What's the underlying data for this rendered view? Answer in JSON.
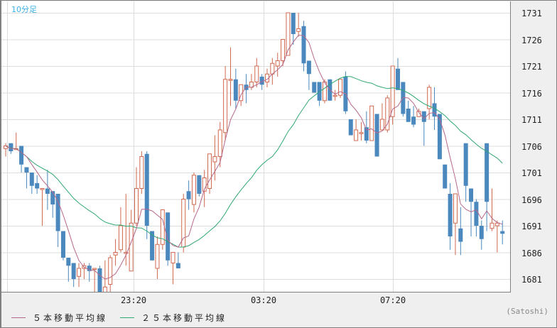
{
  "header": {
    "period_label": "10分足"
  },
  "legend": [
    {
      "label": "５本移動平均線",
      "color": "#b5678a"
    },
    {
      "label": "２５本移動平均線",
      "color": "#2fa872"
    }
  ],
  "credit": "(Satoshi)",
  "colors": {
    "up": "#d0694f",
    "down": "#4a88bd",
    "grid": "#dddddd",
    "ma5": "#b5678a",
    "ma25": "#2fa872"
  },
  "chart_data": {
    "type": "candlestick",
    "title": "10分足",
    "xlabel": "",
    "ylabel": "",
    "ylim": [
      1678,
      1733
    ],
    "y_ticks": [
      1731,
      1726,
      1721,
      1716,
      1711,
      1706,
      1701,
      1696,
      1691,
      1686,
      1681
    ],
    "x_ticks": [
      {
        "label": "23:20",
        "index": 24
      },
      {
        "label": "03:20",
        "index": 50
      },
      {
        "label": "07:20",
        "index": 75
      }
    ],
    "grid": true,
    "legend_position": "bottom-left",
    "candles": [
      {
        "o": 1705.5,
        "h": 1706.5,
        "l": 1704.0,
        "c": 1706.0
      },
      {
        "o": 1706.5,
        "h": 1706.5,
        "l": 1704.5,
        "c": 1705.0
      },
      {
        "o": 1705.5,
        "h": 1708.5,
        "l": 1705.5,
        "c": 1705.5
      },
      {
        "o": 1706.0,
        "h": 1706.0,
        "l": 1701.0,
        "c": 1702.5
      },
      {
        "o": 1702.0,
        "h": 1702.0,
        "l": 1698.0,
        "c": 1701.0
      },
      {
        "o": 1701.0,
        "h": 1700.5,
        "l": 1697.0,
        "c": 1698.5
      },
      {
        "o": 1699.0,
        "h": 1700.5,
        "l": 1697.0,
        "c": 1698.0
      },
      {
        "o": 1698.0,
        "h": 1698.0,
        "l": 1691.0,
        "c": 1698.0
      },
      {
        "o": 1698.0,
        "h": 1701.5,
        "l": 1694.0,
        "c": 1697.0
      },
      {
        "o": 1697.5,
        "h": 1697.5,
        "l": 1692.5,
        "c": 1695.0
      },
      {
        "o": 1697.0,
        "h": 1697.0,
        "l": 1687.0,
        "c": 1690.0
      },
      {
        "o": 1690.0,
        "h": 1690.0,
        "l": 1684.5,
        "c": 1685.0
      },
      {
        "o": 1685.0,
        "h": 1684.0,
        "l": 1680.5,
        "c": 1683.5
      },
      {
        "o": 1684.0,
        "h": 1683.5,
        "l": 1679.5,
        "c": 1681.0
      },
      {
        "o": 1681.5,
        "h": 1684.0,
        "l": 1679.5,
        "c": 1683.0
      },
      {
        "o": 1683.0,
        "h": 1684.0,
        "l": 1681.0,
        "c": 1683.5
      },
      {
        "o": 1683.5,
        "h": 1684.0,
        "l": 1680.5,
        "c": 1682.5
      },
      {
        "o": 1683.0,
        "h": 1683.0,
        "l": 1678.5,
        "c": 1683.0
      },
      {
        "o": 1683.0,
        "h": 1683.5,
        "l": 1675.0,
        "c": 1676.5
      },
      {
        "o": 1676.0,
        "h": 1684.5,
        "l": 1673.0,
        "c": 1679.5
      },
      {
        "o": 1680.0,
        "h": 1685.5,
        "l": 1675.5,
        "c": 1685.0
      },
      {
        "o": 1685.5,
        "h": 1688.5,
        "l": 1683.5,
        "c": 1686.0
      },
      {
        "o": 1686.5,
        "h": 1694.5,
        "l": 1686.0,
        "c": 1691.0
      },
      {
        "o": 1686.0,
        "h": 1697.0,
        "l": 1683.5,
        "c": 1686.0
      },
      {
        "o": 1682.5,
        "h": 1694.0,
        "l": 1682.5,
        "c": 1691.5
      },
      {
        "o": 1691.5,
        "h": 1702.0,
        "l": 1691.0,
        "c": 1698.0
      },
      {
        "o": 1698.0,
        "h": 1705.0,
        "l": 1697.0,
        "c": 1704.0
      },
      {
        "o": 1704.5,
        "h": 1705.0,
        "l": 1688.5,
        "c": 1691.0
      },
      {
        "o": 1690.0,
        "h": 1690.0,
        "l": 1685.0,
        "c": 1684.5
      },
      {
        "o": 1683.0,
        "h": 1689.0,
        "l": 1681.0,
        "c": 1687.5
      },
      {
        "o": 1687.5,
        "h": 1691.5,
        "l": 1686.5,
        "c": 1694.0
      },
      {
        "o": 1693.5,
        "h": 1693.5,
        "l": 1683.5,
        "c": 1684.5
      },
      {
        "o": 1684.0,
        "h": 1686.0,
        "l": 1680.0,
        "c": 1686.0
      },
      {
        "o": 1684.0,
        "h": 1686.0,
        "l": 1683.5,
        "c": 1683.0
      },
      {
        "o": 1687.0,
        "h": 1697.0,
        "l": 1686.0,
        "c": 1696.0
      },
      {
        "o": 1697.5,
        "h": 1699.5,
        "l": 1694.0,
        "c": 1696.0
      },
      {
        "o": 1695.0,
        "h": 1701.0,
        "l": 1693.5,
        "c": 1700.5
      },
      {
        "o": 1700.5,
        "h": 1700.5,
        "l": 1696.5,
        "c": 1697.0
      },
      {
        "o": 1697.5,
        "h": 1701.5,
        "l": 1694.5,
        "c": 1700.0
      },
      {
        "o": 1698.0,
        "h": 1704.5,
        "l": 1697.0,
        "c": 1704.5
      },
      {
        "o": 1703.0,
        "h": 1708.0,
        "l": 1699.5,
        "c": 1704.0
      },
      {
        "o": 1704.0,
        "h": 1710.5,
        "l": 1702.0,
        "c": 1709.0
      },
      {
        "o": 1708.5,
        "h": 1721.0,
        "l": 1707.0,
        "c": 1718.5
      },
      {
        "o": 1718.5,
        "h": 1724.5,
        "l": 1713.5,
        "c": 1718.5
      },
      {
        "o": 1718.5,
        "h": 1720.5,
        "l": 1713.0,
        "c": 1714.5
      },
      {
        "o": 1714.5,
        "h": 1717.5,
        "l": 1713.5,
        "c": 1717.5
      },
      {
        "o": 1717.5,
        "h": 1719.5,
        "l": 1714.0,
        "c": 1716.5
      },
      {
        "o": 1717.0,
        "h": 1719.5,
        "l": 1716.5,
        "c": 1718.0
      },
      {
        "o": 1718.0,
        "h": 1722.5,
        "l": 1717.0,
        "c": 1721.0
      },
      {
        "o": 1719.0,
        "h": 1719.5,
        "l": 1716.5,
        "c": 1717.5
      },
      {
        "o": 1718.0,
        "h": 1720.5,
        "l": 1717.0,
        "c": 1719.5
      },
      {
        "o": 1719.5,
        "h": 1722.5,
        "l": 1717.5,
        "c": 1721.5
      },
      {
        "o": 1721.0,
        "h": 1723.5,
        "l": 1719.0,
        "c": 1722.0
      },
      {
        "o": 1722.0,
        "h": 1725.5,
        "l": 1721.0,
        "c": 1726.0
      },
      {
        "o": 1723.0,
        "h": 1731.0,
        "l": 1723.0,
        "c": 1731.0
      },
      {
        "o": 1731.0,
        "h": 1731.0,
        "l": 1725.0,
        "c": 1727.0
      },
      {
        "o": 1727.5,
        "h": 1731.0,
        "l": 1726.5,
        "c": 1728.0
      },
      {
        "o": 1728.5,
        "h": 1729.5,
        "l": 1720.0,
        "c": 1721.5
      },
      {
        "o": 1722.0,
        "h": 1722.0,
        "l": 1716.5,
        "c": 1719.5
      },
      {
        "o": 1718.0,
        "h": 1718.0,
        "l": 1716.0,
        "c": 1716.0
      },
      {
        "o": 1718.0,
        "h": 1718.0,
        "l": 1713.5,
        "c": 1714.5
      },
      {
        "o": 1714.5,
        "h": 1718.5,
        "l": 1714.0,
        "c": 1718.0
      },
      {
        "o": 1718.5,
        "h": 1718.5,
        "l": 1714.5,
        "c": 1714.5
      },
      {
        "o": 1715.5,
        "h": 1716.5,
        "l": 1714.5,
        "c": 1715.5
      },
      {
        "o": 1715.5,
        "h": 1718.5,
        "l": 1715.0,
        "c": 1718.5
      },
      {
        "o": 1719.0,
        "h": 1720.0,
        "l": 1712.0,
        "c": 1712.5
      },
      {
        "o": 1711.0,
        "h": 1711.0,
        "l": 1711.0,
        "c": 1708.0
      },
      {
        "o": 1707.0,
        "h": 1711.0,
        "l": 1707.0,
        "c": 1709.0
      },
      {
        "o": 1708.5,
        "h": 1710.5,
        "l": 1707.0,
        "c": 1708.5
      },
      {
        "o": 1709.5,
        "h": 1712.5,
        "l": 1706.5,
        "c": 1707.0
      },
      {
        "o": 1707.0,
        "h": 1711.0,
        "l": 1708.0,
        "c": 1713.5
      },
      {
        "o": 1712.0,
        "h": 1712.0,
        "l": 1704.0,
        "c": 1704.0
      },
      {
        "o": 1709.0,
        "h": 1714.0,
        "l": 1709.0,
        "c": 1711.0
      },
      {
        "o": 1709.0,
        "h": 1715.5,
        "l": 1708.5,
        "c": 1715.0
      },
      {
        "o": 1711.5,
        "h": 1721.0,
        "l": 1710.0,
        "c": 1721.0
      },
      {
        "o": 1720.5,
        "h": 1722.5,
        "l": 1717.0,
        "c": 1716.5
      },
      {
        "o": 1718.0,
        "h": 1718.0,
        "l": 1711.5,
        "c": 1712.0
      },
      {
        "o": 1713.0,
        "h": 1714.5,
        "l": 1712.0,
        "c": 1710.5
      },
      {
        "o": 1711.5,
        "h": 1713.5,
        "l": 1709.5,
        "c": 1710.0
      },
      {
        "o": 1711.5,
        "h": 1713.0,
        "l": 1712.0,
        "c": 1712.5
      },
      {
        "o": 1712.5,
        "h": 1712.5,
        "l": 1706.0,
        "c": 1710.5
      },
      {
        "o": 1713.0,
        "h": 1717.5,
        "l": 1711.0,
        "c": 1717.0
      },
      {
        "o": 1714.0,
        "h": 1717.0,
        "l": 1709.0,
        "c": 1711.5
      },
      {
        "o": 1712.0,
        "h": 1712.0,
        "l": 1703.5,
        "c": 1703.5
      },
      {
        "o": 1702.5,
        "h": 1702.5,
        "l": 1698.0,
        "c": 1698.0
      },
      {
        "o": 1697.0,
        "h": 1699.0,
        "l": 1686.5,
        "c": 1689.0
      },
      {
        "o": 1691.5,
        "h": 1697.0,
        "l": 1685.5,
        "c": 1697.0
      },
      {
        "o": 1690.5,
        "h": 1694.5,
        "l": 1685.5,
        "c": 1688.0
      },
      {
        "o": 1706.5,
        "h": 1706.5,
        "l": 1695.5,
        "c": 1698.5
      },
      {
        "o": 1698.0,
        "h": 1698.0,
        "l": 1689.0,
        "c": 1695.5
      },
      {
        "o": 1695.5,
        "h": 1696.0,
        "l": 1689.0,
        "c": 1691.0
      },
      {
        "o": 1691.0,
        "h": 1692.0,
        "l": 1686.5,
        "c": 1688.5
      },
      {
        "o": 1706.5,
        "h": 1706.5,
        "l": 1690.0,
        "c": 1695.5
      },
      {
        "o": 1690.5,
        "h": 1698.0,
        "l": 1690.0,
        "c": 1691.5
      },
      {
        "o": 1691.0,
        "h": 1692.0,
        "l": 1686.0,
        "c": 1691.5
      },
      {
        "o": 1690.0,
        "h": 1692.0,
        "l": 1687.5,
        "c": 1689.5
      }
    ],
    "notes": "Approximate candle OHLC read from pixels; y scale 7.5px per unit with 1731 at y=18 and 1681 at y=393."
  }
}
